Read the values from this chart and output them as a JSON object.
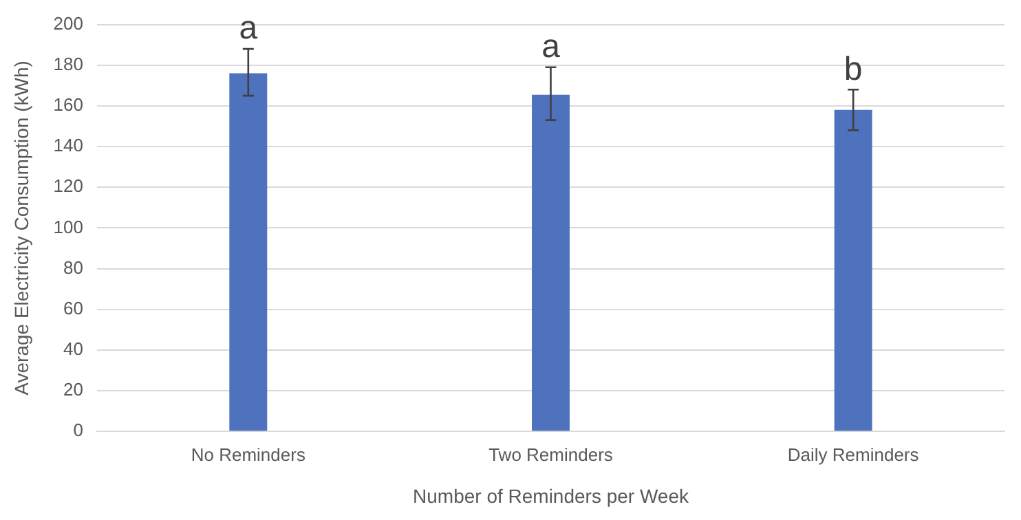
{
  "chart_data": {
    "type": "bar",
    "xlabel": "Number of Reminders per Week",
    "ylabel": "Average Electricity Consumption (kWh)",
    "categories": [
      "No Reminders",
      "Two Reminders",
      "Daily Reminders"
    ],
    "values": [
      176,
      165.5,
      158
    ],
    "color": "#4e72bd",
    "errors": [
      [
        165,
        188
      ],
      [
        153,
        179
      ],
      [
        148,
        168
      ]
    ],
    "ylim": [
      0,
      200
    ],
    "yticks": [
      0,
      20,
      40,
      60,
      80,
      100,
      120,
      140,
      160,
      180,
      200
    ],
    "grid": "y",
    "annotations": [
      {
        "text": "a",
        "x": "No Reminders",
        "y": 188
      },
      {
        "text": "a",
        "x": "Two Reminders",
        "y": 179
      },
      {
        "text": "b",
        "x": "Daily Reminders",
        "y": 168
      }
    ]
  }
}
